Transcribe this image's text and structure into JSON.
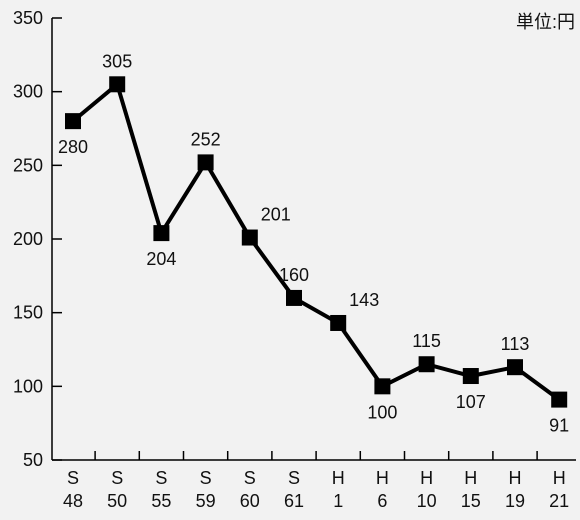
{
  "chart_data": {
    "type": "line",
    "unit_label": "単位:円",
    "categories": [
      [
        "S",
        "48"
      ],
      [
        "S",
        "50"
      ],
      [
        "S",
        "55"
      ],
      [
        "S",
        "59"
      ],
      [
        "S",
        "60"
      ],
      [
        "S",
        "61"
      ],
      [
        "H",
        "1"
      ],
      [
        "H",
        "6"
      ],
      [
        "H",
        "10"
      ],
      [
        "H",
        "15"
      ],
      [
        "H",
        "19"
      ],
      [
        "H",
        "21"
      ]
    ],
    "values": [
      280,
      305,
      204,
      252,
      201,
      160,
      143,
      100,
      115,
      107,
      113,
      91
    ],
    "label_position": [
      "below",
      "above",
      "below",
      "above",
      "above-right",
      "above",
      "above-right",
      "below",
      "above",
      "below",
      "above",
      "below"
    ],
    "ylim": [
      50,
      350
    ],
    "yticks": [
      50,
      100,
      150,
      200,
      250,
      300,
      350
    ],
    "grid": false,
    "line_color": "#000000",
    "marker": "square"
  }
}
